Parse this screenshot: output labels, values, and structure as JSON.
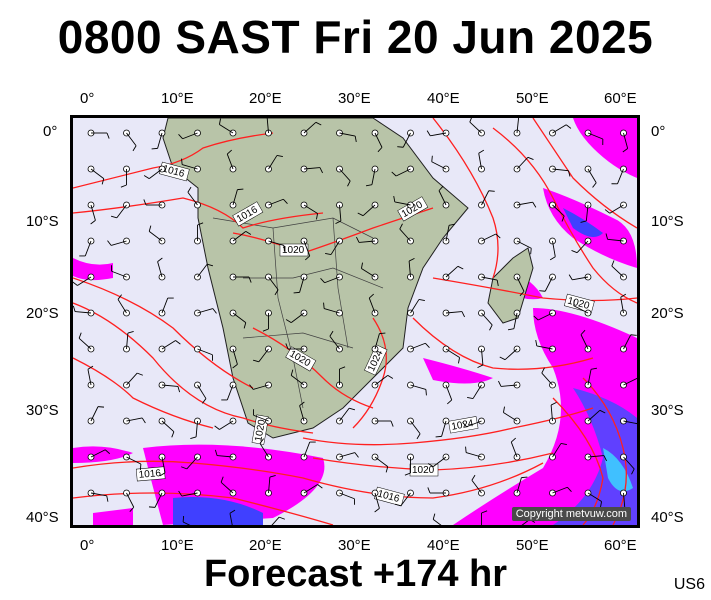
{
  "header": {
    "title": "0800 SAST Fri 20 Jun 2025"
  },
  "footer": {
    "forecast": "Forecast +174 hr",
    "code": "US6"
  },
  "map": {
    "copyright": "Copyright metvuw.com",
    "top_lon_labels": [
      "0°",
      "10°E",
      "20°E",
      "30°E",
      "40°E",
      "50°E",
      "60°E"
    ],
    "bottom_lon_labels": [
      "0°",
      "10°E",
      "20°E",
      "30°E",
      "40°E",
      "50°E",
      "60°E"
    ],
    "left_lat_labels": [
      "0°",
      "10°S",
      "20°S",
      "30°S",
      "40°S"
    ],
    "right_lat_labels": [
      "0°",
      "10°S",
      "20°S",
      "30°S",
      "40°S"
    ],
    "isobar_labels": [
      "1016",
      "1016",
      "1020",
      "1020",
      "1020",
      "1024",
      "1020",
      "1020",
      "1024",
      "1020",
      "1016",
      "1016"
    ],
    "colors": {
      "ocean": "#e8e8f8",
      "land": "#b8c4a8",
      "isobar": "#ff2020",
      "rain_light": "#ff00ff",
      "rain_heavy": "#4040ff"
    }
  }
}
